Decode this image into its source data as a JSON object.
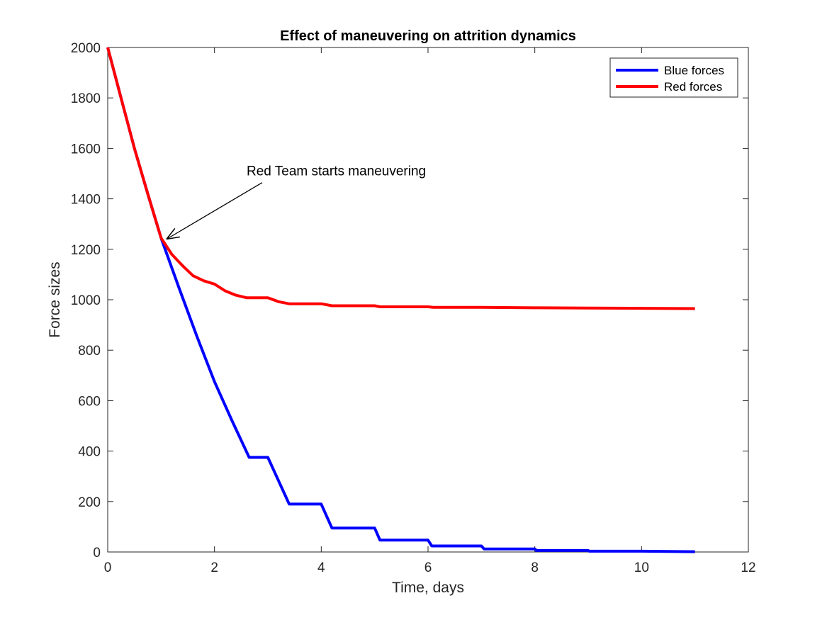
{
  "chart_data": {
    "type": "line",
    "title": "Effect of maneuvering on attrition dynamics",
    "xlabel": "Time, days",
    "ylabel": "Force sizes",
    "xlim": [
      0,
      12
    ],
    "ylim": [
      0,
      2000
    ],
    "xticks": [
      0,
      2,
      4,
      6,
      8,
      10,
      12
    ],
    "yticks": [
      0,
      200,
      400,
      600,
      800,
      1000,
      1200,
      1400,
      1600,
      1800,
      2000
    ],
    "grid": false,
    "legend_position": "top-right",
    "series": [
      {
        "name": "Blue forces",
        "color": "#0000ff",
        "points": [
          [
            0,
            2000
          ],
          [
            0.25,
            1800
          ],
          [
            0.5,
            1600
          ],
          [
            0.75,
            1420
          ],
          [
            1.0,
            1245
          ],
          [
            1.33,
            1050
          ],
          [
            1.67,
            855
          ],
          [
            2.0,
            675
          ],
          [
            2.33,
            520
          ],
          [
            2.65,
            375
          ],
          [
            3.0,
            375
          ],
          [
            3.4,
            190
          ],
          [
            4.0,
            190
          ],
          [
            4.2,
            95
          ],
          [
            5.0,
            95
          ],
          [
            5.1,
            47
          ],
          [
            6.0,
            47
          ],
          [
            6.07,
            24
          ],
          [
            7.0,
            24
          ],
          [
            7.05,
            12
          ],
          [
            8.0,
            12
          ],
          [
            8.03,
            6
          ],
          [
            9.0,
            6
          ],
          [
            9.02,
            3
          ],
          [
            10.0,
            3
          ],
          [
            11.0,
            1
          ]
        ]
      },
      {
        "name": "Red forces",
        "color": "#ff0000",
        "points": [
          [
            0,
            2000
          ],
          [
            0.25,
            1800
          ],
          [
            0.5,
            1600
          ],
          [
            0.75,
            1420
          ],
          [
            1.0,
            1245
          ],
          [
            1.2,
            1180
          ],
          [
            1.4,
            1135
          ],
          [
            1.6,
            1095
          ],
          [
            1.8,
            1075
          ],
          [
            2.0,
            1062
          ],
          [
            2.2,
            1035
          ],
          [
            2.4,
            1018
          ],
          [
            2.6,
            1008
          ],
          [
            3.0,
            1008
          ],
          [
            3.2,
            992
          ],
          [
            3.4,
            984
          ],
          [
            4.0,
            984
          ],
          [
            4.2,
            976
          ],
          [
            5.0,
            976
          ],
          [
            5.1,
            972
          ],
          [
            6.0,
            972
          ],
          [
            6.1,
            970
          ],
          [
            7.0,
            970
          ],
          [
            8.0,
            968
          ],
          [
            9.0,
            967
          ],
          [
            10.0,
            966
          ],
          [
            11.0,
            965
          ]
        ]
      }
    ],
    "annotations": [
      {
        "text": "Red Team starts maneuvering",
        "arrow_to": [
          1.1,
          1240
        ],
        "text_at": [
          3.0,
          1470
        ]
      }
    ]
  }
}
